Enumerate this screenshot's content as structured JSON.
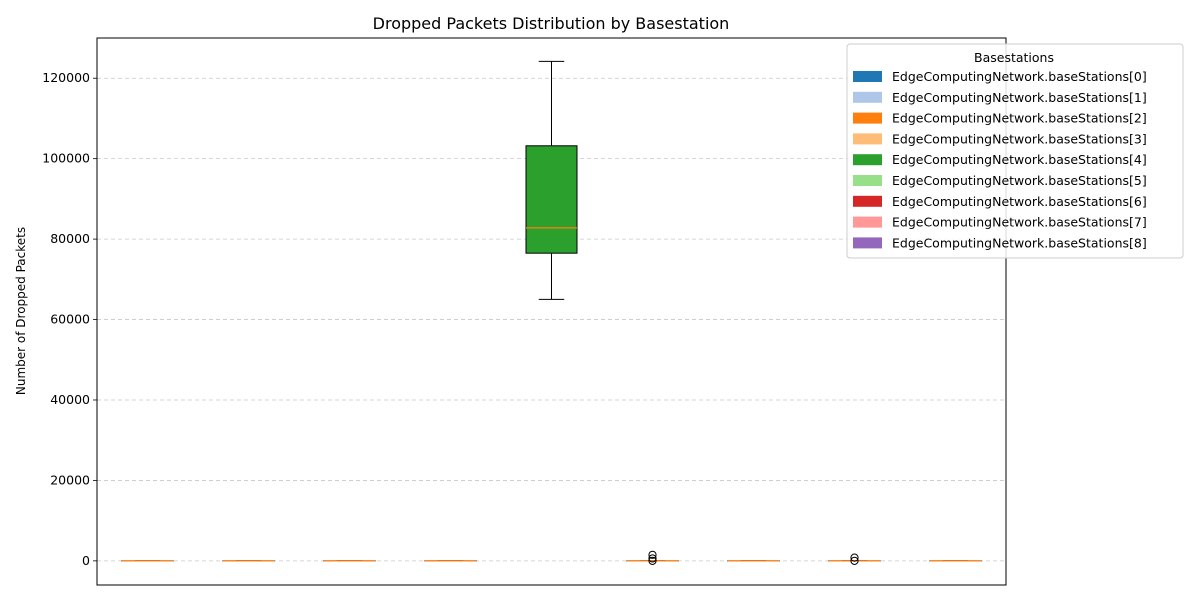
{
  "chart_data": {
    "type": "box",
    "title": "Dropped Packets Distribution by Basestation",
    "xlabel": "",
    "ylabel": "Number of Dropped Packets",
    "ylim": [
      -6000,
      130000
    ],
    "yticks": [
      0,
      20000,
      40000,
      60000,
      80000,
      100000,
      120000
    ],
    "ytick_labels": [
      "0",
      "20000",
      "40000",
      "60000",
      "80000",
      "100000",
      "120000"
    ],
    "grid": "horizontal-dashed",
    "legend": {
      "title": "Basestations",
      "placement": "top-right-outside"
    },
    "median_color": "#ff7f0e",
    "series": [
      {
        "name": "EdgeComputingNetwork.baseStations[0]",
        "color": "#1f77b4",
        "whisker_low": 0,
        "q1": 0,
        "median": 0,
        "q3": 0,
        "whisker_high": 0,
        "outliers": []
      },
      {
        "name": "EdgeComputingNetwork.baseStations[1]",
        "color": "#aec7e8",
        "whisker_low": 0,
        "q1": 0,
        "median": 0,
        "q3": 0,
        "whisker_high": 0,
        "outliers": []
      },
      {
        "name": "EdgeComputingNetwork.baseStations[2]",
        "color": "#ff7f0e",
        "whisker_low": 0,
        "q1": 0,
        "median": 0,
        "q3": 0,
        "whisker_high": 0,
        "outliers": []
      },
      {
        "name": "EdgeComputingNetwork.baseStations[3]",
        "color": "#ffbb78",
        "whisker_low": 0,
        "q1": 0,
        "median": 0,
        "q3": 0,
        "whisker_high": 0,
        "outliers": []
      },
      {
        "name": "EdgeComputingNetwork.baseStations[4]",
        "color": "#2ca02c",
        "whisker_low": 65000,
        "q1": 76500,
        "median": 82800,
        "q3": 103200,
        "whisker_high": 124200,
        "outliers": []
      },
      {
        "name": "EdgeComputingNetwork.baseStations[5]",
        "color": "#98df8a",
        "whisker_low": 0,
        "q1": 0,
        "median": 0,
        "q3": 0,
        "whisker_high": 0,
        "outliers": [
          0,
          600,
          1500
        ]
      },
      {
        "name": "EdgeComputingNetwork.baseStations[6]",
        "color": "#d62728",
        "whisker_low": 0,
        "q1": 0,
        "median": 0,
        "q3": 0,
        "whisker_high": 0,
        "outliers": []
      },
      {
        "name": "EdgeComputingNetwork.baseStations[7]",
        "color": "#ff9896",
        "whisker_low": 0,
        "q1": 0,
        "median": 0,
        "q3": 0,
        "whisker_high": 0,
        "outliers": [
          0,
          800
        ]
      },
      {
        "name": "EdgeComputingNetwork.baseStations[8]",
        "color": "#9467bd",
        "whisker_low": 0,
        "q1": 0,
        "median": 0,
        "q3": 0,
        "whisker_high": 0,
        "outliers": []
      }
    ]
  }
}
